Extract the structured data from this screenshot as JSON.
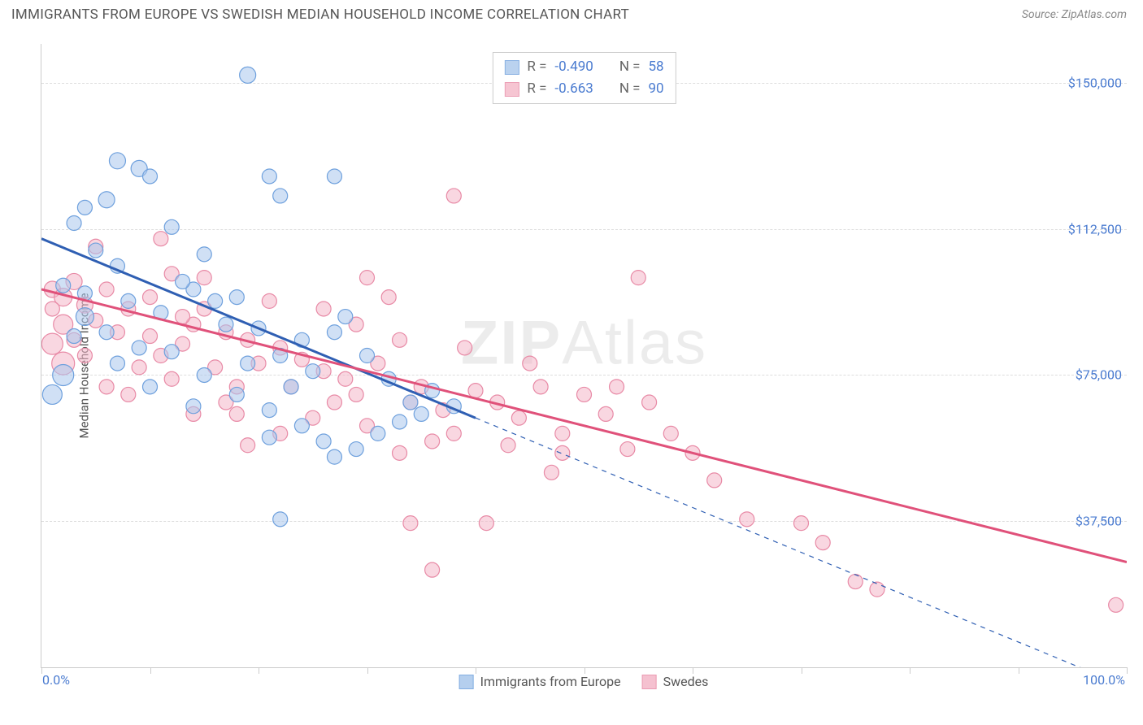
{
  "title": "IMMIGRANTS FROM EUROPE VS SWEDISH MEDIAN HOUSEHOLD INCOME CORRELATION CHART",
  "source": "Source: ZipAtlas.com",
  "watermark": {
    "bold": "ZIP",
    "rest": "Atlas"
  },
  "chart": {
    "type": "scatter",
    "ylabel": "Median Household Income",
    "xlim": [
      0,
      100
    ],
    "ylim": [
      0,
      160000
    ],
    "xticks": [
      0,
      10,
      20,
      30,
      40,
      50,
      60,
      70,
      80,
      90,
      100
    ],
    "xtick_labels_shown": {
      "0": "0.0%",
      "100": "100.0%"
    },
    "yticks": [
      37500,
      75000,
      112500,
      150000
    ],
    "ytick_labels": [
      "$37,500",
      "$75,000",
      "$112,500",
      "$150,000"
    ],
    "grid_color": "#dddddd",
    "axis_color": "#cccccc",
    "background_color": "#ffffff",
    "tick_label_color": "#4a7bd0",
    "series": [
      {
        "name": "Immigrants from Europe",
        "fill": "#a9c7ec",
        "stroke": "#6ea0dd",
        "fill_opacity": 0.55,
        "line_color": "#2f5fb3",
        "line_width": 3,
        "marker_r_default": 9,
        "R": "-0.490",
        "N": "58",
        "trend_solid": {
          "x1": 0,
          "y1": 110000,
          "x2": 40,
          "y2": 64000
        },
        "trend_dashed": {
          "x1": 40,
          "y1": 64000,
          "x2": 100,
          "y2": -5000
        },
        "points": [
          {
            "x": 19,
            "y": 152000,
            "r": 10
          },
          {
            "x": 7,
            "y": 130000,
            "r": 10
          },
          {
            "x": 9,
            "y": 128000,
            "r": 10
          },
          {
            "x": 10,
            "y": 126000,
            "r": 9
          },
          {
            "x": 6,
            "y": 120000,
            "r": 10
          },
          {
            "x": 4,
            "y": 118000,
            "r": 9
          },
          {
            "x": 3,
            "y": 114000,
            "r": 9
          },
          {
            "x": 12,
            "y": 113000,
            "r": 9
          },
          {
            "x": 5,
            "y": 107000,
            "r": 9
          },
          {
            "x": 15,
            "y": 106000,
            "r": 9
          },
          {
            "x": 7,
            "y": 103000,
            "r": 9
          },
          {
            "x": 21,
            "y": 126000,
            "r": 9
          },
          {
            "x": 22,
            "y": 121000,
            "r": 9
          },
          {
            "x": 27,
            "y": 126000,
            "r": 9
          },
          {
            "x": 14,
            "y": 97000,
            "r": 9
          },
          {
            "x": 4,
            "y": 96000,
            "r": 9
          },
          {
            "x": 8,
            "y": 94000,
            "r": 9
          },
          {
            "x": 2,
            "y": 98000,
            "r": 9
          },
          {
            "x": 11,
            "y": 91000,
            "r": 9
          },
          {
            "x": 18,
            "y": 95000,
            "r": 9
          },
          {
            "x": 13,
            "y": 99000,
            "r": 9
          },
          {
            "x": 17,
            "y": 88000,
            "r": 9
          },
          {
            "x": 20,
            "y": 87000,
            "r": 9
          },
          {
            "x": 6,
            "y": 86000,
            "r": 9
          },
          {
            "x": 24,
            "y": 84000,
            "r": 9
          },
          {
            "x": 16,
            "y": 94000,
            "r": 9
          },
          {
            "x": 9,
            "y": 82000,
            "r": 9
          },
          {
            "x": 3,
            "y": 85000,
            "r": 9
          },
          {
            "x": 12,
            "y": 81000,
            "r": 9
          },
          {
            "x": 22,
            "y": 80000,
            "r": 9
          },
          {
            "x": 19,
            "y": 78000,
            "r": 9
          },
          {
            "x": 25,
            "y": 76000,
            "r": 9
          },
          {
            "x": 28,
            "y": 90000,
            "r": 9
          },
          {
            "x": 27,
            "y": 86000,
            "r": 9
          },
          {
            "x": 30,
            "y": 80000,
            "r": 9
          },
          {
            "x": 32,
            "y": 74000,
            "r": 9
          },
          {
            "x": 34,
            "y": 68000,
            "r": 9
          },
          {
            "x": 35,
            "y": 65000,
            "r": 9
          },
          {
            "x": 23,
            "y": 72000,
            "r": 9
          },
          {
            "x": 15,
            "y": 75000,
            "r": 9
          },
          {
            "x": 18,
            "y": 70000,
            "r": 9
          },
          {
            "x": 21,
            "y": 66000,
            "r": 9
          },
          {
            "x": 36,
            "y": 71000,
            "r": 9
          },
          {
            "x": 38,
            "y": 67000,
            "r": 9
          },
          {
            "x": 24,
            "y": 62000,
            "r": 9
          },
          {
            "x": 21,
            "y": 59000,
            "r": 9
          },
          {
            "x": 26,
            "y": 58000,
            "r": 9
          },
          {
            "x": 29,
            "y": 56000,
            "r": 9
          },
          {
            "x": 31,
            "y": 60000,
            "r": 9
          },
          {
            "x": 27,
            "y": 54000,
            "r": 9
          },
          {
            "x": 22,
            "y": 38000,
            "r": 9
          },
          {
            "x": 14,
            "y": 67000,
            "r": 9
          },
          {
            "x": 7,
            "y": 78000,
            "r": 9
          },
          {
            "x": 2,
            "y": 75000,
            "r": 13
          },
          {
            "x": 1,
            "y": 70000,
            "r": 12
          },
          {
            "x": 4,
            "y": 90000,
            "r": 11
          },
          {
            "x": 10,
            "y": 72000,
            "r": 9
          },
          {
            "x": 33,
            "y": 63000,
            "r": 9
          }
        ]
      },
      {
        "name": "Swedes",
        "fill": "#f4b7c8",
        "stroke": "#e88aa6",
        "fill_opacity": 0.55,
        "line_color": "#e0517a",
        "line_width": 3,
        "marker_r_default": 9,
        "R": "-0.663",
        "N": "90",
        "trend_solid": {
          "x1": 0,
          "y1": 97000,
          "x2": 100,
          "y2": 27000
        },
        "points": [
          {
            "x": 38,
            "y": 121000,
            "r": 9
          },
          {
            "x": 11,
            "y": 110000,
            "r": 9
          },
          {
            "x": 3,
            "y": 99000,
            "r": 10
          },
          {
            "x": 1,
            "y": 97000,
            "r": 10
          },
          {
            "x": 2,
            "y": 95000,
            "r": 11
          },
          {
            "x": 12,
            "y": 101000,
            "r": 9
          },
          {
            "x": 4,
            "y": 93000,
            "r": 10
          },
          {
            "x": 6,
            "y": 97000,
            "r": 9
          },
          {
            "x": 8,
            "y": 92000,
            "r": 9
          },
          {
            "x": 10,
            "y": 95000,
            "r": 9
          },
          {
            "x": 5,
            "y": 89000,
            "r": 9
          },
          {
            "x": 15,
            "y": 92000,
            "r": 9
          },
          {
            "x": 14,
            "y": 88000,
            "r": 9
          },
          {
            "x": 7,
            "y": 86000,
            "r": 9
          },
          {
            "x": 3,
            "y": 84000,
            "r": 9
          },
          {
            "x": 13,
            "y": 83000,
            "r": 9
          },
          {
            "x": 11,
            "y": 80000,
            "r": 9
          },
          {
            "x": 2,
            "y": 88000,
            "r": 12
          },
          {
            "x": 1,
            "y": 83000,
            "r": 13
          },
          {
            "x": 17,
            "y": 86000,
            "r": 9
          },
          {
            "x": 19,
            "y": 84000,
            "r": 9
          },
          {
            "x": 22,
            "y": 82000,
            "r": 9
          },
          {
            "x": 20,
            "y": 78000,
            "r": 9
          },
          {
            "x": 16,
            "y": 77000,
            "r": 9
          },
          {
            "x": 24,
            "y": 79000,
            "r": 9
          },
          {
            "x": 26,
            "y": 76000,
            "r": 9
          },
          {
            "x": 28,
            "y": 74000,
            "r": 9
          },
          {
            "x": 23,
            "y": 72000,
            "r": 9
          },
          {
            "x": 30,
            "y": 100000,
            "r": 9
          },
          {
            "x": 29,
            "y": 88000,
            "r": 9
          },
          {
            "x": 33,
            "y": 84000,
            "r": 9
          },
          {
            "x": 31,
            "y": 78000,
            "r": 9
          },
          {
            "x": 35,
            "y": 72000,
            "r": 9
          },
          {
            "x": 34,
            "y": 68000,
            "r": 9
          },
          {
            "x": 18,
            "y": 72000,
            "r": 9
          },
          {
            "x": 12,
            "y": 74000,
            "r": 9
          },
          {
            "x": 9,
            "y": 77000,
            "r": 9
          },
          {
            "x": 27,
            "y": 68000,
            "r": 9
          },
          {
            "x": 25,
            "y": 64000,
            "r": 9
          },
          {
            "x": 37,
            "y": 66000,
            "r": 9
          },
          {
            "x": 40,
            "y": 71000,
            "r": 9
          },
          {
            "x": 42,
            "y": 68000,
            "r": 9
          },
          {
            "x": 44,
            "y": 64000,
            "r": 9
          },
          {
            "x": 38,
            "y": 60000,
            "r": 9
          },
          {
            "x": 30,
            "y": 62000,
            "r": 9
          },
          {
            "x": 33,
            "y": 55000,
            "r": 9
          },
          {
            "x": 22,
            "y": 60000,
            "r": 9
          },
          {
            "x": 19,
            "y": 57000,
            "r": 9
          },
          {
            "x": 46,
            "y": 72000,
            "r": 9
          },
          {
            "x": 48,
            "y": 60000,
            "r": 9
          },
          {
            "x": 50,
            "y": 70000,
            "r": 9
          },
          {
            "x": 52,
            "y": 65000,
            "r": 9
          },
          {
            "x": 55,
            "y": 100000,
            "r": 9
          },
          {
            "x": 53,
            "y": 72000,
            "r": 9
          },
          {
            "x": 56,
            "y": 68000,
            "r": 9
          },
          {
            "x": 58,
            "y": 60000,
            "r": 9
          },
          {
            "x": 60,
            "y": 55000,
            "r": 9
          },
          {
            "x": 48,
            "y": 55000,
            "r": 9
          },
          {
            "x": 43,
            "y": 57000,
            "r": 9
          },
          {
            "x": 41,
            "y": 37000,
            "r": 9
          },
          {
            "x": 36,
            "y": 25000,
            "r": 9
          },
          {
            "x": 34,
            "y": 37000,
            "r": 9
          },
          {
            "x": 62,
            "y": 48000,
            "r": 9
          },
          {
            "x": 65,
            "y": 38000,
            "r": 9
          },
          {
            "x": 70,
            "y": 37000,
            "r": 9
          },
          {
            "x": 72,
            "y": 32000,
            "r": 9
          },
          {
            "x": 75,
            "y": 22000,
            "r": 9
          },
          {
            "x": 77,
            "y": 20000,
            "r": 9
          },
          {
            "x": 99,
            "y": 16000,
            "r": 9
          },
          {
            "x": 45,
            "y": 78000,
            "r": 9
          },
          {
            "x": 39,
            "y": 82000,
            "r": 9
          },
          {
            "x": 36,
            "y": 58000,
            "r": 9
          },
          {
            "x": 6,
            "y": 72000,
            "r": 9
          },
          {
            "x": 14,
            "y": 65000,
            "r": 9
          },
          {
            "x": 4,
            "y": 80000,
            "r": 9
          },
          {
            "x": 8,
            "y": 70000,
            "r": 9
          },
          {
            "x": 1,
            "y": 92000,
            "r": 9
          },
          {
            "x": 21,
            "y": 94000,
            "r": 9
          },
          {
            "x": 15,
            "y": 100000,
            "r": 9
          },
          {
            "x": 26,
            "y": 92000,
            "r": 9
          },
          {
            "x": 5,
            "y": 108000,
            "r": 9
          },
          {
            "x": 18,
            "y": 65000,
            "r": 9
          },
          {
            "x": 29,
            "y": 70000,
            "r": 9
          },
          {
            "x": 54,
            "y": 56000,
            "r": 9
          },
          {
            "x": 47,
            "y": 50000,
            "r": 9
          },
          {
            "x": 32,
            "y": 95000,
            "r": 9
          },
          {
            "x": 2,
            "y": 78000,
            "r": 14
          },
          {
            "x": 10,
            "y": 85000,
            "r": 9
          },
          {
            "x": 13,
            "y": 90000,
            "r": 9
          },
          {
            "x": 17,
            "y": 68000,
            "r": 9
          }
        ]
      }
    ]
  },
  "legend": {
    "r_label": "R =",
    "n_label": "N ="
  }
}
